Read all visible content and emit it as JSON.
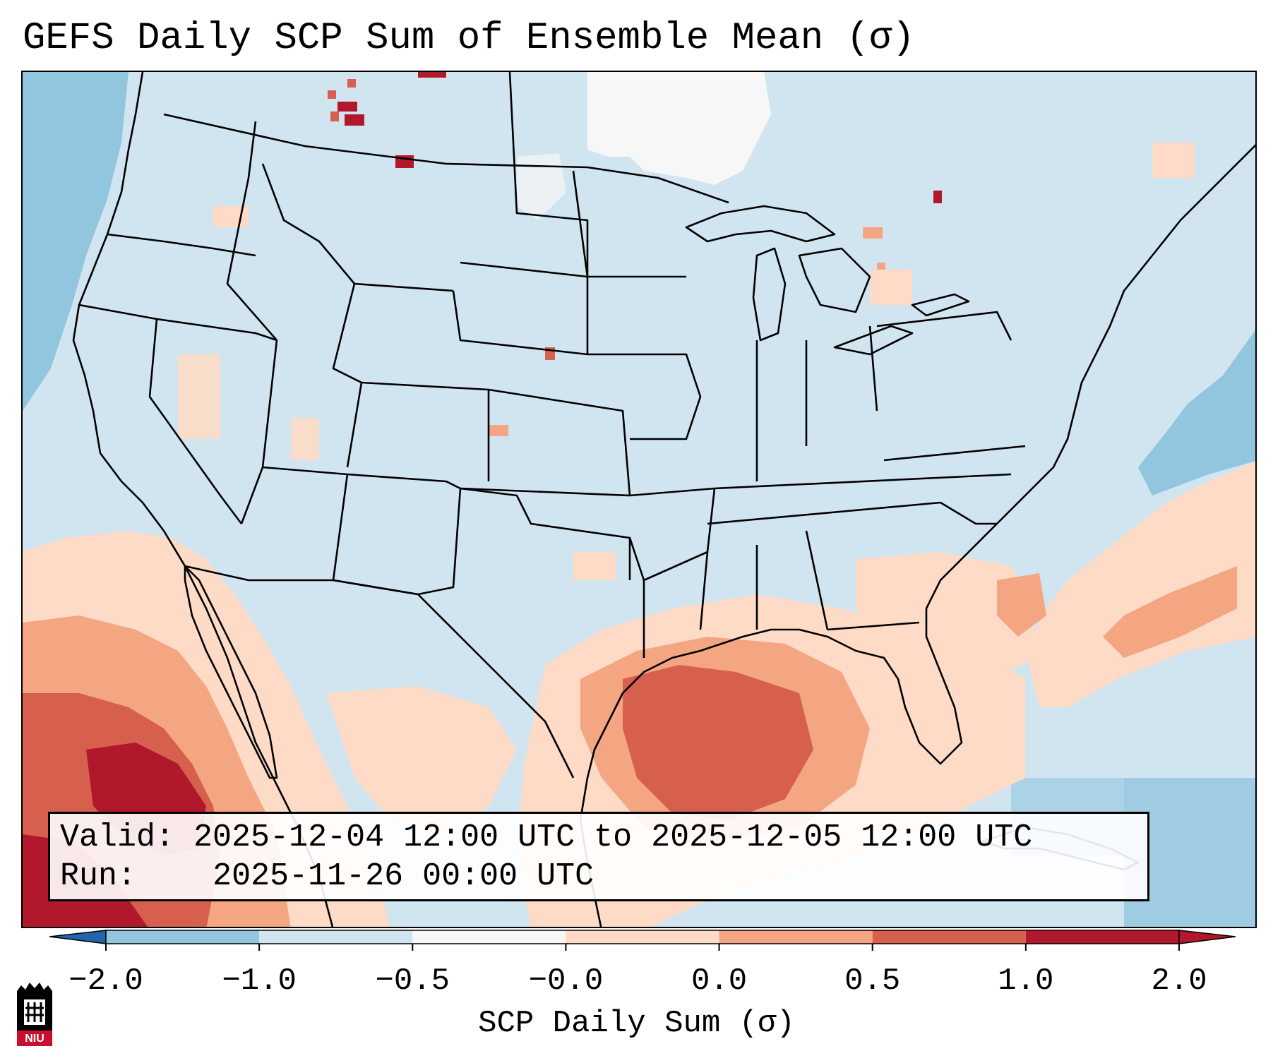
{
  "title": "GEFS Daily SCP Sum of Ensemble Mean (σ)",
  "info": {
    "valid_label": "Valid:",
    "valid_value": "2025-12-04 12:00 UTC to 2025-12-05 12:00 UTC",
    "run_label": "Run:",
    "run_value": "2025-11-26 00:00 UTC"
  },
  "colorbar": {
    "label": "SCP Daily Sum (σ)",
    "ticks": [
      "−2.0",
      "−1.0",
      "−0.5",
      "−0.0",
      "0.0",
      "0.5",
      "1.0",
      "2.0"
    ],
    "colors": [
      "#4393c3",
      "#92c5de",
      "#d1e5f0",
      "#f7f7f7",
      "#fddbc7",
      "#f4a582",
      "#d6604d",
      "#b2182b"
    ],
    "extend_low_color": "#2166ac",
    "extend_high_color": "#b2182b"
  },
  "map": {
    "background_color": "#d1e5f0",
    "features": [
      "state-borders",
      "coastlines",
      "great-lakes"
    ]
  },
  "logo": {
    "text": "NIU"
  }
}
